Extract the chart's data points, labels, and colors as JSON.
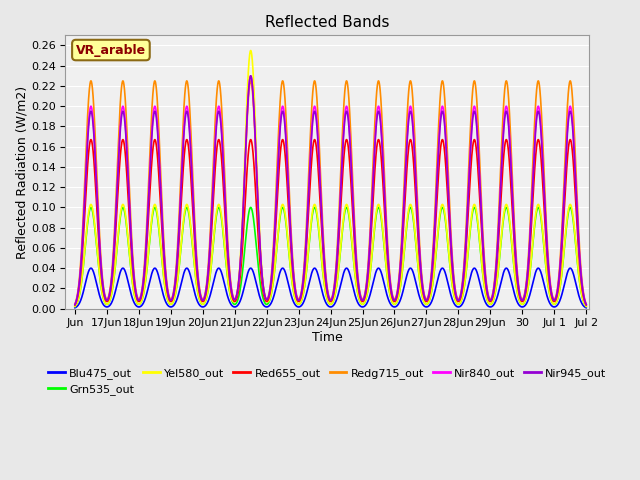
{
  "title": "Reflected Bands",
  "xlabel": "Time",
  "ylabel": "Reflected Radiation (W/m2)",
  "annotation_text": "VR_arable",
  "annotation_color": "#8B0000",
  "annotation_bg": "#FFFF99",
  "annotation_border": "#8B6914",
  "ylim": [
    0,
    0.27
  ],
  "yticks": [
    0.0,
    0.02,
    0.04,
    0.06,
    0.08,
    0.1,
    0.12,
    0.14,
    0.16,
    0.18,
    0.2,
    0.22,
    0.24,
    0.26
  ],
  "bg_color": "#E8E8E8",
  "plot_bg": "#F0F0F0",
  "series": [
    {
      "name": "Blu475_out",
      "color": "#0000FF",
      "peak": 0.04,
      "linewidth": 1.2
    },
    {
      "name": "Grn535_out",
      "color": "#00FF00",
      "peak": 0.1,
      "linewidth": 1.2
    },
    {
      "name": "Yel580_out",
      "color": "#FFFF00",
      "peak": 0.103,
      "linewidth": 1.2
    },
    {
      "name": "Red655_out",
      "color": "#FF0000",
      "peak": 0.167,
      "linewidth": 1.2
    },
    {
      "name": "Redg715_out",
      "color": "#FF8C00",
      "peak": 0.225,
      "linewidth": 1.2
    },
    {
      "name": "Nir840_out",
      "color": "#FF00FF",
      "peak": 0.2,
      "linewidth": 1.2
    },
    {
      "name": "Nir945_out",
      "color": "#9400D3",
      "peak": 0.195,
      "linewidth": 1.2
    }
  ],
  "n_days": 16,
  "tick_labels": [
    "Jun",
    "17Jun",
    "18Jun",
    "19Jun",
    "20Jun",
    "21Jun",
    "22Jun",
    "23Jun",
    "24Jun",
    "25Jun",
    "26Jun",
    "27Jun",
    "28Jun",
    "29Jun",
    "30",
    "Jul 1",
    "Jul 2"
  ],
  "special_day": 5,
  "special_peaks": {
    "Yel580_out": 0.255,
    "Nir840_out": 0.23,
    "Nir945_out": 0.23
  }
}
